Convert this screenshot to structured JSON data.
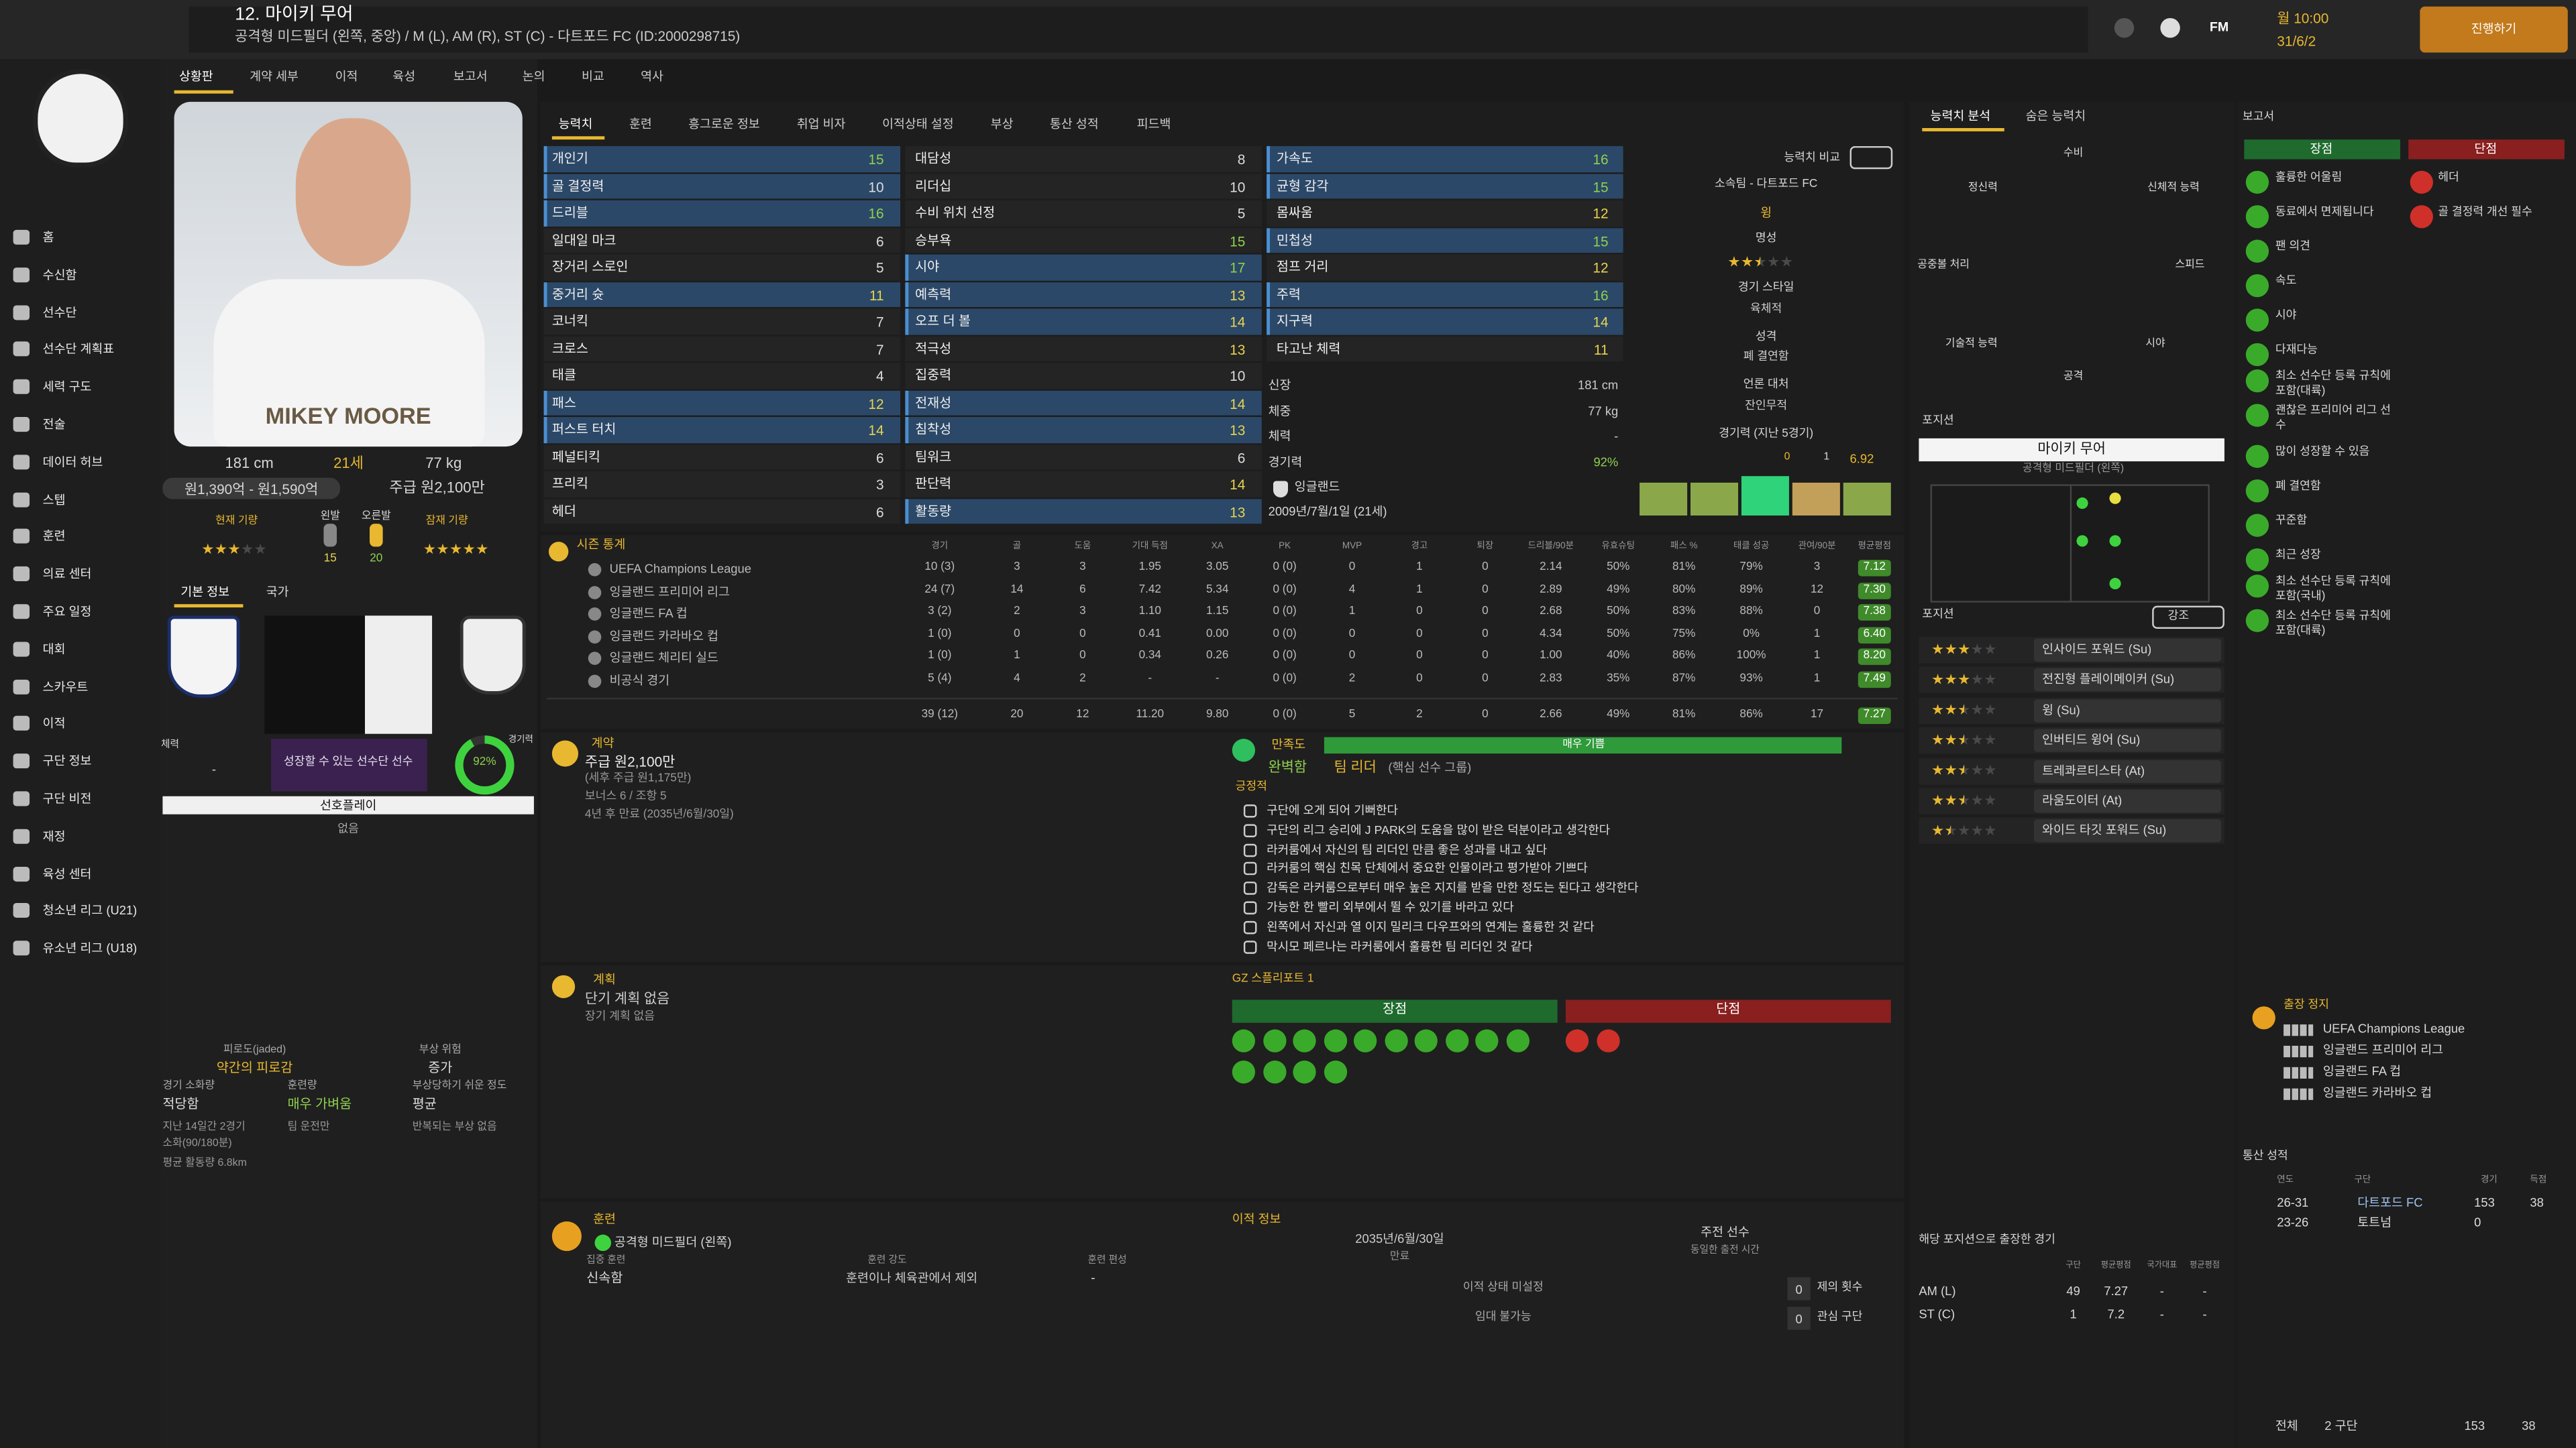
{
  "header": {
    "title": "12. 마이키 무어",
    "subtitle": "공격형 미드필더 (왼쪽, 중앙) / M (L), AM (R), ST (C) - 다트포드 FC (ID:2000298715)",
    "time": "월 10:00",
    "date": "31/6/2",
    "fm": "FM",
    "continue": "진행하기"
  },
  "nav": [
    "홈",
    "수신함",
    "선수단",
    "선수단 계획표",
    "세력 구도",
    "전술",
    "데이터 허브",
    "스텝",
    "훈련",
    "의료 센터",
    "주요 일정",
    "대회",
    "스카우트",
    "이적",
    "구단 정보",
    "구단 비전",
    "재정",
    "육성 센터",
    "청소년 리그 (U21)",
    "유소년 리그 (U18)"
  ],
  "tabs": [
    "상황판",
    "계약 세부",
    "이적",
    "육성",
    "보고서",
    "논의",
    "비교",
    "역사"
  ],
  "subtabs": [
    "능력치",
    "훈련",
    "흥그로운 정보",
    "취업 비자",
    "이적상태 설정",
    "부상",
    "통산 성적",
    "피드백"
  ],
  "profile": {
    "nameplate": "MIKEY MOORE",
    "height": "181 cm",
    "age": "21세",
    "weight": "77 kg",
    "value": "원1,390억 - 원1,590억",
    "wage": "주급 원2,100만",
    "current_label": "현재 기량",
    "potential_label": "잠재 기량",
    "current_stars": 3,
    "potential_stars": 5,
    "left_label": "왼발",
    "right_label": "오른발",
    "left_foot": 15,
    "right_foot": 20,
    "basic_info": "기본 정보",
    "nation": "국가",
    "stamina_label": "체력",
    "stamina": "-",
    "status": "성장할 수 있는 선수단 선수",
    "condition": {
      "value": 92,
      "label": "92%"
    },
    "condition_label": "경기력",
    "preferred": "선호플레이",
    "preferred_value": "없음"
  },
  "fitness": [
    {
      "label": "피로도(jaded)",
      "value": "약간의 피로감"
    },
    {
      "label": "부상 위험",
      "value": "증가"
    },
    {
      "label": "경기 소화량",
      "value": "적당함"
    },
    {
      "label": "훈련량",
      "value": "매우 가벼움"
    },
    {
      "label": "부상당하기 쉬운 정도",
      "value": "평균"
    }
  ],
  "fitness_notes": [
    "지난 14일간 2경기",
    "소화(90/180분)",
    "팀 운전만",
    "반복되는 부상 없음",
    "평균 활동량 6.8km"
  ],
  "attributes": [
    [
      {
        "name": "개인기",
        "value": 15,
        "highlight": true
      },
      {
        "name": "골 결정력",
        "value": 10,
        "highlight": true
      },
      {
        "name": "드리블",
        "value": 16,
        "highlight": true
      },
      {
        "name": "일대일 마크",
        "value": 6,
        "highlight": false
      },
      {
        "name": "장거리 스로인",
        "value": 5,
        "highlight": false
      },
      {
        "name": "중거리 슛",
        "value": 11,
        "highlight": true
      },
      {
        "name": "코너킥",
        "value": 7,
        "highlight": false
      },
      {
        "name": "크로스",
        "value": 7,
        "highlight": false
      },
      {
        "name": "태클",
        "value": 4,
        "highlight": false
      },
      {
        "name": "패스",
        "value": 12,
        "highlight": true
      },
      {
        "name": "퍼스트 터치",
        "value": 14,
        "highlight": true
      },
      {
        "name": "페널티킥",
        "value": 6,
        "highlight": false
      },
      {
        "name": "프리킥",
        "value": 3,
        "highlight": false
      },
      {
        "name": "헤더",
        "value": 6,
        "highlight": false
      }
    ],
    [
      {
        "name": "대담성",
        "value": 8,
        "highlight": false
      },
      {
        "name": "리더십",
        "value": 10,
        "highlight": false
      },
      {
        "name": "수비 위치 선정",
        "value": 5,
        "highlight": false
      },
      {
        "name": "승부욕",
        "value": 15,
        "highlight": false
      },
      {
        "name": "시야",
        "value": 17,
        "highlight": true
      },
      {
        "name": "예측력",
        "value": 13,
        "highlight": true
      },
      {
        "name": "오프 더 볼",
        "value": 14,
        "highlight": true
      },
      {
        "name": "적극성",
        "value": 13,
        "highlight": false
      },
      {
        "name": "집중력",
        "value": 10,
        "highlight": false
      },
      {
        "name": "전재성",
        "value": 14,
        "highlight": true
      },
      {
        "name": "침착성",
        "value": 13,
        "highlight": true
      },
      {
        "name": "팀워크",
        "value": 6,
        "highlight": false
      },
      {
        "name": "판단력",
        "value": 14,
        "highlight": false
      },
      {
        "name": "활동량",
        "value": 13,
        "highlight": true
      }
    ],
    [
      {
        "name": "가속도",
        "value": 16,
        "highlight": true
      },
      {
        "name": "균형 감각",
        "value": 15,
        "highlight": true
      },
      {
        "name": "몸싸움",
        "value": 12,
        "highlight": false
      },
      {
        "name": "민첩성",
        "value": 15,
        "highlight": true
      },
      {
        "name": "점프 거리",
        "value": 12,
        "highlight": false
      },
      {
        "name": "주력",
        "value": 16,
        "highlight": true
      },
      {
        "name": "지구력",
        "value": 14,
        "highlight": true
      },
      {
        "name": "타고난 체력",
        "value": 11,
        "highlight": false
      }
    ]
  ],
  "physical": [
    {
      "label": "신장",
      "value": "181 cm"
    },
    {
      "label": "체중",
      "value": "77 kg"
    },
    {
      "label": "체력",
      "value": "-"
    },
    {
      "label": "경기력",
      "value": "92%"
    }
  ],
  "nationality": "잉글랜드",
  "dob": "2009년/7월/1일 (21세)",
  "info": {
    "compare": "능력치 비교",
    "club": "소속팀 - 다트포드 FC",
    "role": "윙",
    "reputation_label": "명성",
    "reputation": 2.5,
    "style_label": "경기 스타일",
    "style": "육체적",
    "personality_label": "성격",
    "personality": "폐 결연함",
    "media_label": "언론 대처",
    "media": "잔인무적",
    "form_label": "경기력 (지난 5경기)",
    "form_goals": 0,
    "form_assists": 1,
    "form_avg": 6.92
  },
  "stats": {
    "title": "시즌 통계",
    "headers": [
      "경기",
      "골",
      "도움",
      "기대 득점",
      "XA",
      "PK",
      "MVP",
      "경고",
      "퇴장",
      "드리블/90분",
      "유효슈팅",
      "패스 %",
      "태클 성공",
      "관여/90분",
      "평균평점"
    ],
    "rows": [
      {
        "name": "UEFA Champions League",
        "cells": [
          "10 (3)",
          "3",
          "3",
          "1.95",
          "3.05",
          "0 (0)",
          "0",
          "1",
          "0",
          "2.14",
          "50%",
          "81%",
          "79%",
          "3",
          "7.12"
        ]
      },
      {
        "name": "잉글랜드 프리미어 리그",
        "cells": [
          "24 (7)",
          "14",
          "6",
          "7.42",
          "5.34",
          "0 (0)",
          "4",
          "1",
          "0",
          "2.89",
          "49%",
          "80%",
          "89%",
          "12",
          "7.30"
        ]
      },
      {
        "name": "잉글랜드 FA 컵",
        "cells": [
          "3 (2)",
          "2",
          "3",
          "1.10",
          "1.15",
          "0 (0)",
          "1",
          "0",
          "0",
          "2.68",
          "50%",
          "83%",
          "88%",
          "0",
          "7.38"
        ]
      },
      {
        "name": "잉글랜드 카라바오 컵",
        "cells": [
          "1 (0)",
          "0",
          "0",
          "0.41",
          "0.00",
          "0 (0)",
          "0",
          "0",
          "0",
          "4.34",
          "50%",
          "75%",
          "0%",
          "1",
          "6.40"
        ]
      },
      {
        "name": "잉글랜드 체리티 실드",
        "cells": [
          "1 (0)",
          "1",
          "0",
          "0.34",
          "0.26",
          "0 (0)",
          "0",
          "0",
          "0",
          "1.00",
          "40%",
          "86%",
          "100%",
          "1",
          "8.20"
        ]
      },
      {
        "name": "비공식 경기",
        "cells": [
          "5 (4)",
          "4",
          "2",
          "-",
          "-",
          "0 (0)",
          "2",
          "0",
          "0",
          "2.83",
          "35%",
          "87%",
          "93%",
          "1",
          "7.49"
        ]
      }
    ],
    "total": [
      "39 (12)",
      "20",
      "12",
      "11.20",
      "9.80",
      "0 (0)",
      "5",
      "2",
      "0",
      "2.66",
      "49%",
      "81%",
      "86%",
      "17",
      "7.27"
    ]
  },
  "contract": {
    "title": "계약",
    "wage": "주급 원2,100만",
    "net": "(세후 주급 원1,175만)",
    "bonus": "보너스 6 / 조항 5",
    "expiry": "4년 후 만료 (2035년/6월/30일)"
  },
  "happiness": {
    "title": "만족도",
    "level": "매우 기쁨",
    "relation": "완벽함",
    "role": "팀 리더",
    "group": "(핵심 선수 그룹)",
    "positive": "긍정적",
    "lines": [
      "구단에 오게 되어 기뻐한다",
      "구단의 리그 승리에 J PARK의 도움을 많이 받은 덕분이라고 생각한다",
      "라커룸에서 자신의 팀 리더인 만큼 좋은 성과를 내고 싶다",
      "라커룸의 핵심 친목 단체에서 중요한 인물이라고 평가받아 기쁘다",
      "감독은 라커룸으로부터 매우 높은 지지를 받을 만한 정도는 된다고 생각한다",
      "가능한 한 빨리 외부에서 뛸 수 있기를 바라고 있다",
      "왼쪽에서 자신과 열 이지 밀리크 다우프와의 연계는 훌륭한 것 같다",
      "막시모 페르나는 라커룸에서 훌륭한 팀 리더인 것 같다"
    ]
  },
  "plans": {
    "title": "계획",
    "short": "단기 계획 없음",
    "long": "장기 계획 없음"
  },
  "scout": {
    "title": "GZ 스플리포트 1",
    "pros": "장점",
    "cons": "단점"
  },
  "training": {
    "title": "훈련",
    "position": "공격형 미드필더 (왼쪽)",
    "focus_label": "집중 훈련",
    "focus": "신속함",
    "intensity_label": "훈련 강도",
    "intensity": "훈련이나 체육관에서 제외",
    "unit_label": "훈련 편성",
    "unit": "-"
  },
  "transfer": {
    "title": "이적 정보",
    "date": "2035년/6월/30일",
    "date_label": "만료",
    "squad": "주전 선수",
    "squad_note": "동일한 출전 시간",
    "status": "이적 상태 미설정",
    "loan": "임대 불가능",
    "offers": 0,
    "offers_label": "제의 횟수",
    "interest": 0,
    "interest_label": "관심 구단"
  },
  "radar": {
    "tabs": [
      "능력치 분석",
      "숨은 능력치"
    ],
    "labels": [
      "수비",
      "신체적 능력",
      "스피드",
      "시야",
      "공격",
      "기술적 능력",
      "공중볼 처리",
      "정신력"
    ]
  },
  "position": {
    "title": "포지션",
    "name": "마이키 무어",
    "role": "공격형 미드필더 (왼쪽)",
    "roles_title": "포지션",
    "highlight": "강조",
    "roles": [
      {
        "name": "인사이드 포워드 (Su)",
        "stars": 3
      },
      {
        "name": "전진형 플레이메이커 (Su)",
        "stars": 3
      },
      {
        "name": "윙 (Su)",
        "stars": 2.5
      },
      {
        "name": "인버티드 윙어 (Su)",
        "stars": 2.5
      },
      {
        "name": "트레콰르티스타 (At)",
        "stars": 2.5
      },
      {
        "name": "라움도이터 (At)",
        "stars": 2.5
      },
      {
        "name": "와이드 타깃 포워드 (Su)",
        "stars": 1.5
      }
    ]
  },
  "report": {
    "title": "보고서",
    "pros": "장점",
    "cons": "단점",
    "strengths": [
      "훌륭한 어울림",
      "동료에서 면제됩니다",
      "팬 의견",
      "속도",
      "시야",
      "다재다능",
      "최소 선수단 등록 규칙에 포함(대륙)",
      "괜찮은 프리미어 리그 선수",
      "많이 성장할 수 있음",
      "폐 결연함",
      "꾸준함",
      "최근 성장",
      "최소 선수단 등록 규칙에 포함(국내)",
      "최소 선수단 등록 규칙에 포함(대륙)"
    ],
    "weaknesses": [
      "헤더",
      "골 결정력 개선 필수"
    ]
  },
  "suspension": {
    "title": "출장 정지",
    "competitions": [
      "UEFA Champions League",
      "잉글랜드 프리미어 리그",
      "잉글랜드 FA 컵",
      "잉글랜드 카라바오 컵"
    ]
  },
  "career": {
    "title": "통산 성적",
    "headers": [
      "연도",
      "구단",
      "경기",
      "득점"
    ],
    "rows": [
      [
        "26-31",
        "다트포드 FC",
        153,
        38
      ],
      [
        "23-26",
        "토트넘",
        0,
        null
      ]
    ],
    "total": [
      "전체",
      "2 구단",
      153,
      38
    ]
  },
  "positions_played": {
    "title": "해당 포지션으로 출장한 경기",
    "headers": [
      "구단",
      "평균평점",
      "국가대표",
      "평균평점"
    ],
    "rows": [
      [
        "AM (L)",
        49,
        7.27,
        "-",
        "-"
      ],
      [
        "ST (C)",
        1,
        7.2,
        "-",
        "-"
      ]
    ]
  }
}
